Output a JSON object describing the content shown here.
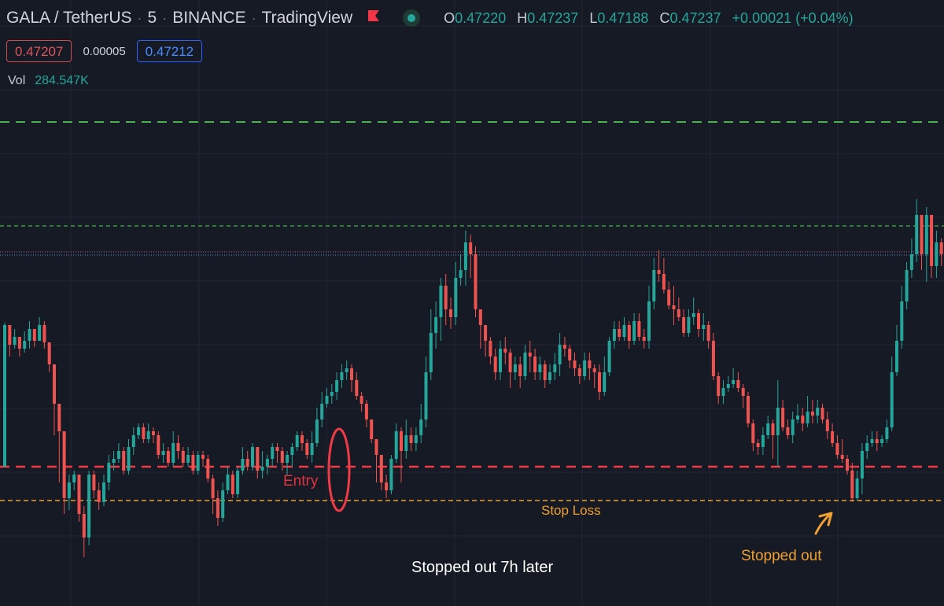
{
  "header": {
    "symbol": "GALA / TetherUS",
    "interval": "5",
    "exchange": "BINANCE",
    "platform": "TradingView",
    "ohlc": {
      "o_label": "O",
      "o": "0.47220",
      "h_label": "H",
      "h": "0.47237",
      "l_label": "L",
      "l": "0.47188",
      "c_label": "C",
      "c": "0.47237",
      "change": "+0.00021 (+0.04%)"
    }
  },
  "quote": {
    "bid": "0.47207",
    "spread": "0.00005",
    "ask": "0.47212"
  },
  "volume": {
    "label": "Vol",
    "value": "284.547K"
  },
  "annotations": {
    "entry": "Entry",
    "stop_loss": "Stop Loss",
    "stopped_out_later": "Stopped out 7h later",
    "stopped_out": "Stopped out"
  },
  "colors": {
    "background": "#161a25",
    "up": "#26a69a",
    "down": "#ef5350",
    "take_profit": "#4caf50",
    "entry": "#ef3b45",
    "stop_loss": "#f0a030",
    "ask": "#2962ff"
  },
  "chart_data": {
    "type": "candlestick",
    "y_scale_note": "relative price scale; entry = 0, stop loss = -43",
    "levels": [
      {
        "name": "take-profit-2",
        "value": 438,
        "style": "dashed"
      },
      {
        "name": "take-profit-1",
        "value": 306,
        "style": "dashed"
      },
      {
        "name": "bid-price",
        "value": 273,
        "style": "dotted"
      },
      {
        "name": "ask-price",
        "value": 269,
        "style": "dotted"
      },
      {
        "name": "entry",
        "value": 0,
        "style": "dashed"
      },
      {
        "name": "stop-loss",
        "value": -43,
        "style": "dashed"
      }
    ],
    "candles": [
      [
        0,
        180,
        183,
        135
      ],
      [
        180,
        155,
        166,
        140
      ],
      [
        155,
        165,
        175,
        150
      ],
      [
        165,
        150,
        158,
        140
      ],
      [
        150,
        160,
        172,
        145
      ],
      [
        160,
        175,
        185,
        150
      ],
      [
        175,
        160,
        170,
        152
      ],
      [
        160,
        180,
        190,
        170
      ],
      [
        180,
        158,
        185,
        150
      ],
      [
        158,
        130,
        140,
        120
      ],
      [
        130,
        80,
        90,
        40
      ],
      [
        80,
        45,
        60,
        -20
      ],
      [
        45,
        -40,
        -20,
        -60
      ],
      [
        -40,
        -20,
        -10,
        -55
      ],
      [
        -20,
        -10,
        -5,
        -30
      ],
      [
        -10,
        -60,
        -15,
        -70
      ],
      [
        -60,
        -90,
        -50,
        -115
      ],
      [
        -90,
        -10,
        -5,
        -100
      ],
      [
        -10,
        -30,
        -5,
        -40
      ],
      [
        -30,
        -45,
        -20,
        -55
      ],
      [
        -45,
        -20,
        -10,
        -50
      ],
      [
        -20,
        5,
        15,
        -30
      ],
      [
        5,
        10,
        20,
        -5
      ],
      [
        10,
        20,
        30,
        5
      ],
      [
        20,
        -5,
        25,
        -10
      ],
      [
        -5,
        25,
        35,
        -10
      ],
      [
        25,
        40,
        50,
        15
      ],
      [
        40,
        50,
        55,
        35
      ],
      [
        50,
        35,
        55,
        30
      ],
      [
        35,
        45,
        55,
        30
      ],
      [
        45,
        40,
        50,
        30
      ],
      [
        40,
        15,
        45,
        10
      ],
      [
        15,
        20,
        30,
        5
      ],
      [
        20,
        5,
        25,
        0
      ],
      [
        5,
        30,
        45,
        0
      ],
      [
        30,
        20,
        40,
        10
      ],
      [
        20,
        5,
        25,
        0
      ],
      [
        5,
        15,
        25,
        0
      ],
      [
        15,
        -5,
        20,
        -10
      ],
      [
        -5,
        15,
        20,
        -10
      ],
      [
        15,
        10,
        20,
        0
      ],
      [
        10,
        -15,
        15,
        -20
      ],
      [
        -15,
        -40,
        -10,
        -60
      ],
      [
        -40,
        -65,
        -30,
        -75
      ],
      [
        -65,
        -30,
        -20,
        -70
      ],
      [
        -30,
        -10,
        0,
        -35
      ],
      [
        -10,
        -35,
        -5,
        -40
      ],
      [
        -35,
        -5,
        0,
        -40
      ],
      [
        -5,
        10,
        25,
        -10
      ],
      [
        10,
        0,
        20,
        -5
      ],
      [
        0,
        25,
        30,
        -5
      ],
      [
        25,
        -5,
        25,
        -15
      ],
      [
        -5,
        0,
        20,
        -15
      ],
      [
        0,
        10,
        15,
        -10
      ],
      [
        10,
        25,
        30,
        0
      ],
      [
        25,
        20,
        30,
        5
      ],
      [
        20,
        5,
        25,
        -5
      ],
      [
        5,
        15,
        20,
        -10
      ],
      [
        15,
        25,
        30,
        0
      ],
      [
        25,
        40,
        45,
        20
      ],
      [
        40,
        30,
        45,
        20
      ],
      [
        30,
        15,
        35,
        10
      ],
      [
        15,
        30,
        45,
        5
      ],
      [
        30,
        60,
        75,
        25
      ],
      [
        60,
        80,
        95,
        50
      ],
      [
        80,
        90,
        100,
        75
      ],
      [
        90,
        95,
        105,
        80
      ],
      [
        95,
        110,
        120,
        85
      ],
      [
        110,
        120,
        130,
        100
      ],
      [
        120,
        125,
        135,
        110
      ],
      [
        125,
        110,
        130,
        95
      ],
      [
        110,
        90,
        120,
        85
      ],
      [
        90,
        80,
        95,
        70
      ],
      [
        80,
        60,
        85,
        50
      ],
      [
        60,
        35,
        60,
        30
      ],
      [
        35,
        15,
        35,
        -20
      ],
      [
        15,
        -20,
        -10,
        -30
      ],
      [
        -20,
        -30,
        -10,
        -40
      ],
      [
        -30,
        10,
        15,
        -35
      ],
      [
        10,
        45,
        55,
        5
      ],
      [
        45,
        20,
        50,
        -20
      ],
      [
        20,
        40,
        60,
        10
      ],
      [
        40,
        30,
        50,
        20
      ],
      [
        30,
        40,
        50,
        20
      ],
      [
        40,
        60,
        80,
        30
      ],
      [
        60,
        120,
        140,
        50
      ],
      [
        120,
        170,
        200,
        110
      ],
      [
        170,
        190,
        210,
        150
      ],
      [
        190,
        230,
        240,
        160
      ],
      [
        230,
        200,
        245,
        180
      ],
      [
        200,
        190,
        215,
        175
      ],
      [
        190,
        240,
        260,
        180
      ],
      [
        240,
        250,
        270,
        230
      ],
      [
        250,
        285,
        300,
        230
      ],
      [
        285,
        270,
        295,
        240
      ],
      [
        270,
        200,
        280,
        190
      ],
      [
        200,
        180,
        190,
        150
      ],
      [
        180,
        160,
        170,
        140
      ],
      [
        160,
        140,
        165,
        130
      ],
      [
        140,
        120,
        150,
        110
      ],
      [
        120,
        150,
        160,
        110
      ],
      [
        150,
        145,
        165,
        130
      ],
      [
        145,
        120,
        150,
        100
      ],
      [
        120,
        130,
        140,
        110
      ],
      [
        130,
        115,
        140,
        100
      ],
      [
        115,
        145,
        155,
        110
      ],
      [
        145,
        140,
        160,
        120
      ],
      [
        140,
        120,
        150,
        110
      ],
      [
        120,
        130,
        140,
        110
      ],
      [
        130,
        110,
        135,
        100
      ],
      [
        110,
        120,
        130,
        105
      ],
      [
        120,
        130,
        145,
        110
      ],
      [
        130,
        155,
        170,
        115
      ],
      [
        155,
        150,
        165,
        140
      ],
      [
        150,
        135,
        155,
        125
      ],
      [
        135,
        125,
        145,
        115
      ],
      [
        125,
        115,
        130,
        105
      ],
      [
        115,
        135,
        145,
        110
      ],
      [
        135,
        125,
        145,
        110
      ],
      [
        125,
        120,
        130,
        100
      ],
      [
        120,
        95,
        130,
        85
      ],
      [
        95,
        120,
        140,
        90
      ],
      [
        120,
        160,
        165,
        115
      ],
      [
        160,
        175,
        185,
        150
      ],
      [
        175,
        165,
        185,
        160
      ],
      [
        165,
        180,
        190,
        160
      ],
      [
        180,
        160,
        185,
        150
      ],
      [
        160,
        185,
        195,
        155
      ],
      [
        185,
        165,
        195,
        160
      ],
      [
        165,
        160,
        175,
        150
      ],
      [
        160,
        210,
        230,
        150
      ],
      [
        210,
        250,
        265,
        200
      ],
      [
        250,
        245,
        275,
        235
      ],
      [
        245,
        225,
        265,
        220
      ],
      [
        225,
        205,
        235,
        200
      ],
      [
        205,
        200,
        230,
        180
      ],
      [
        200,
        190,
        215,
        185
      ],
      [
        190,
        170,
        200,
        165
      ],
      [
        170,
        190,
        200,
        165
      ],
      [
        190,
        195,
        215,
        180
      ],
      [
        195,
        175,
        200,
        165
      ],
      [
        175,
        180,
        195,
        160
      ],
      [
        180,
        160,
        185,
        150
      ],
      [
        160,
        115,
        170,
        110
      ],
      [
        115,
        90,
        120,
        80
      ],
      [
        90,
        100,
        110,
        80
      ],
      [
        100,
        105,
        115,
        95
      ],
      [
        105,
        110,
        125,
        100
      ],
      [
        110,
        100,
        120,
        95
      ],
      [
        100,
        90,
        105,
        75
      ],
      [
        90,
        55,
        95,
        50
      ],
      [
        55,
        30,
        60,
        20
      ],
      [
        30,
        25,
        35,
        15
      ],
      [
        25,
        40,
        50,
        15
      ],
      [
        40,
        55,
        65,
        35
      ],
      [
        55,
        40,
        60,
        10
      ],
      [
        40,
        75,
        110,
        0
      ],
      [
        75,
        50,
        85,
        45
      ],
      [
        50,
        40,
        60,
        35
      ],
      [
        40,
        60,
        70,
        30
      ],
      [
        60,
        65,
        80,
        55
      ],
      [
        65,
        55,
        75,
        45
      ],
      [
        55,
        70,
        90,
        50
      ],
      [
        70,
        65,
        85,
        55
      ],
      [
        65,
        75,
        85,
        55
      ],
      [
        75,
        60,
        80,
        55
      ],
      [
        60,
        45,
        70,
        35
      ],
      [
        45,
        30,
        55,
        25
      ],
      [
        30,
        15,
        40,
        10
      ],
      [
        15,
        10,
        35,
        5
      ],
      [
        10,
        -5,
        15,
        -10
      ],
      [
        -5,
        -40,
        5,
        -45
      ],
      [
        -40,
        -15,
        -5,
        -43
      ],
      [
        -15,
        20,
        30,
        -35
      ],
      [
        20,
        30,
        40,
        10
      ],
      [
        30,
        35,
        45,
        25
      ],
      [
        35,
        30,
        45,
        20
      ],
      [
        30,
        35,
        40,
        25
      ],
      [
        35,
        50,
        60,
        30
      ],
      [
        50,
        120,
        140,
        45
      ],
      [
        120,
        160,
        180,
        115
      ],
      [
        160,
        210,
        230,
        150
      ],
      [
        210,
        250,
        260,
        200
      ],
      [
        250,
        270,
        290,
        240
      ],
      [
        270,
        320,
        340,
        260
      ],
      [
        320,
        270,
        320,
        250
      ],
      [
        270,
        320,
        330,
        235
      ],
      [
        320,
        255,
        300,
        240
      ],
      [
        255,
        285,
        300,
        240
      ],
      [
        285,
        270,
        290,
        255
      ]
    ]
  }
}
